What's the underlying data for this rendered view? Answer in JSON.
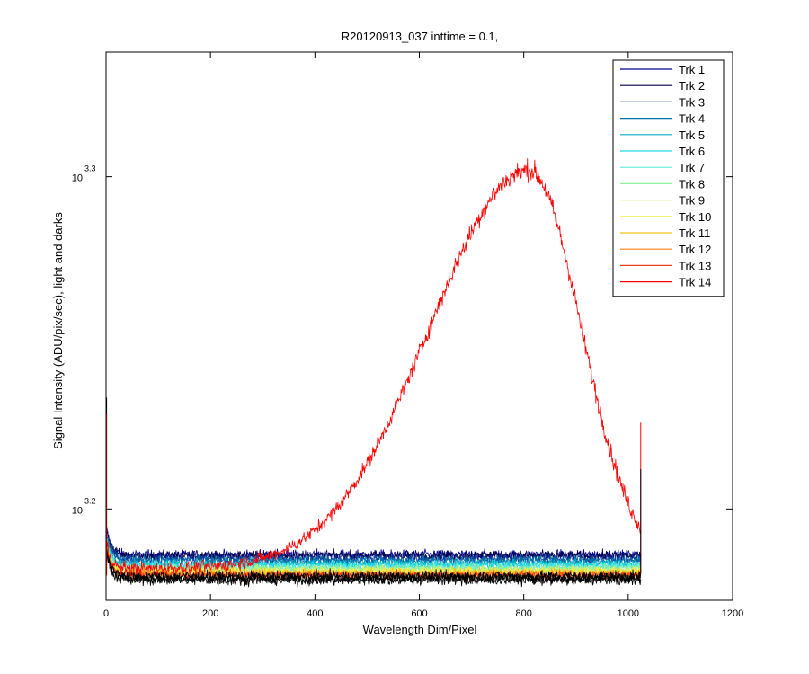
{
  "chart_data": {
    "type": "line",
    "title": "R20120913_037 inttime = 0.1,",
    "xlabel": "Wavelength Dim/Pixel",
    "ylabel": "Signal Intensity (ADU/pix/sec), light and darks",
    "xlim": [
      0,
      1200
    ],
    "ylim_log10": [
      3.1725,
      3.3375
    ],
    "y_scale": "log",
    "x_ticks": [
      "0",
      "200",
      "400",
      "600",
      "800",
      "1000",
      "1200"
    ],
    "y_ticks": [
      {
        "base": "10",
        "exp": "3.2",
        "log10": 3.2
      },
      {
        "base": "10",
        "exp": "3.3",
        "log10": 3.3
      }
    ],
    "grid": false,
    "legend_position": "top-right",
    "pixels": 1024,
    "series": [
      {
        "name": "Trk 1",
        "color": "#00008f",
        "baseline_log10": 3.1862,
        "noise_log10": 0.0015
      },
      {
        "name": "Trk 2",
        "color": "#00004a",
        "baseline_log10": 3.186,
        "noise_log10": 0.0015
      },
      {
        "name": "Trk 3",
        "color": "#0a3a9a",
        "baseline_log10": 3.185,
        "noise_log10": 0.0015
      },
      {
        "name": "Trk 4",
        "color": "#0070a8",
        "baseline_log10": 3.1845,
        "noise_log10": 0.0014
      },
      {
        "name": "Trk 5",
        "color": "#00b0c8",
        "baseline_log10": 3.1835,
        "noise_log10": 0.0014
      },
      {
        "name": "Trk 6",
        "color": "#20d8e0",
        "baseline_log10": 3.183,
        "noise_log10": 0.0014
      },
      {
        "name": "Trk 7",
        "color": "#60e8d8",
        "baseline_log10": 3.1825,
        "noise_log10": 0.0014
      },
      {
        "name": "Trk 8",
        "color": "#90f0a0",
        "baseline_log10": 3.182,
        "noise_log10": 0.0014
      },
      {
        "name": "Trk 9",
        "color": "#c8f070",
        "baseline_log10": 3.1815,
        "noise_log10": 0.0014
      },
      {
        "name": "Trk 10",
        "color": "#f0f040",
        "baseline_log10": 3.1812,
        "noise_log10": 0.0014
      },
      {
        "name": "Trk 11",
        "color": "#f8c020",
        "baseline_log10": 3.1808,
        "noise_log10": 0.0014
      },
      {
        "name": "Trk 12",
        "color": "#f88010",
        "baseline_log10": 3.1803,
        "noise_log10": 0.0014
      },
      {
        "name": "Trk 13",
        "color": "#f04010",
        "baseline_log10": 3.18,
        "noise_log10": 0.0014
      },
      {
        "name": "Trk 14",
        "color": "#ff0000",
        "baseline_log10": 3.182,
        "noise_log10": 0.002,
        "peak": {
          "center_x": 810,
          "sigma_left": 190,
          "sigma_right": 100,
          "peak_log10": 3.302
        }
      }
    ],
    "dark_traces": {
      "color": "#000000",
      "count": 3,
      "baseline_log10": 3.1798,
      "noise_log10": 0.0016
    }
  }
}
